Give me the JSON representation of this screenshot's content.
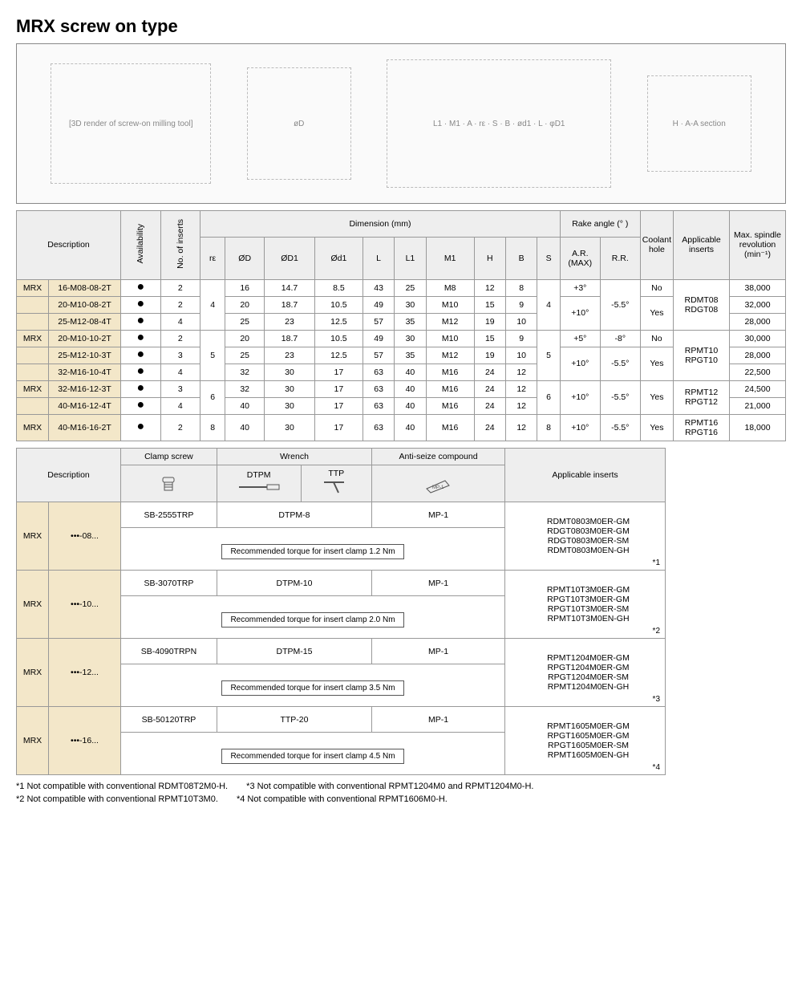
{
  "title": "MRX screw on type",
  "diagram_labels": {
    "photo": "[3D render of screw-on milling tool]",
    "front": "øD",
    "side_labels": "L1 · M1 · A · rε · S · B · ød1 · L · φD1",
    "section": "H · A-A section"
  },
  "main_table": {
    "headers": {
      "description": "Description",
      "availability": "Availability",
      "inserts": "No. of inserts",
      "dimension": "Dimension (mm)",
      "rake": "Rake angle (° )",
      "coolant": "Coolant hole",
      "applicable": "Applicable inserts",
      "maxspindle": "Max. spindle revolution (min⁻¹)",
      "re": "rε",
      "oD": "ØD",
      "oD1": "ØD1",
      "od1": "Ød1",
      "L": "L",
      "L1": "L1",
      "M1": "M1",
      "H": "H",
      "B": "B",
      "S": "S",
      "ar": "A.R. (MAX)",
      "rr": "R.R."
    },
    "groups": [
      {
        "re": "4",
        "S": "4",
        "rr": "-5.5°",
        "applicable": "RDMT08\nRDGT08",
        "rows": [
          {
            "prefix": "MRX",
            "code": "16-M08-08-2T",
            "avail": "●",
            "ni": "2",
            "oD": "16",
            "oD1": "14.7",
            "od1": "8.5",
            "L": "43",
            "L1": "25",
            "M1": "M8",
            "H": "12",
            "B": "8",
            "ar": "+3°",
            "coolant": "No",
            "rpm": "38,000"
          },
          {
            "prefix": "",
            "code": "20-M10-08-2T",
            "avail": "●",
            "ni": "2",
            "oD": "20",
            "oD1": "18.7",
            "od1": "10.5",
            "L": "49",
            "L1": "30",
            "M1": "M10",
            "H": "15",
            "B": "9",
            "ar": "+10°",
            "ar_span": 2,
            "coolant": "Yes",
            "coolant_span": 2,
            "rpm": "32,000"
          },
          {
            "prefix": "",
            "code": "25-M12-08-4T",
            "avail": "●",
            "ni": "4",
            "oD": "25",
            "oD1": "23",
            "od1": "12.5",
            "L": "57",
            "L1": "35",
            "M1": "M12",
            "H": "19",
            "B": "10",
            "rpm": "28,000"
          }
        ]
      },
      {
        "re": "5",
        "S": "5",
        "applicable": "RPMT10\nRPGT10",
        "rows": [
          {
            "prefix": "MRX",
            "code": "20-M10-10-2T",
            "avail": "●",
            "ni": "2",
            "oD": "20",
            "oD1": "18.7",
            "od1": "10.5",
            "L": "49",
            "L1": "30",
            "M1": "M10",
            "H": "15",
            "B": "9",
            "ar": "+5°",
            "rr": "-8°",
            "coolant": "No",
            "rpm": "30,000"
          },
          {
            "prefix": "",
            "code": "25-M12-10-3T",
            "avail": "●",
            "ni": "3",
            "oD": "25",
            "oD1": "23",
            "od1": "12.5",
            "L": "57",
            "L1": "35",
            "M1": "M12",
            "H": "19",
            "B": "10",
            "ar": "+10°",
            "ar_span": 2,
            "rr": "-5.5°",
            "rr_span": 2,
            "coolant": "Yes",
            "coolant_span": 2,
            "rpm": "28,000"
          },
          {
            "prefix": "",
            "code": "32-M16-10-4T",
            "avail": "●",
            "ni": "4",
            "oD": "32",
            "oD1": "30",
            "od1": "17",
            "L": "63",
            "L1": "40",
            "M1": "M16",
            "H": "24",
            "B": "12",
            "rpm": "22,500"
          }
        ]
      },
      {
        "re": "6",
        "S": "6",
        "ar": "+10°",
        "rr": "-5.5°",
        "coolant": "Yes",
        "applicable": "RPMT12\nRPGT12",
        "rows": [
          {
            "prefix": "MRX",
            "code": "32-M16-12-3T",
            "avail": "●",
            "ni": "3",
            "oD": "32",
            "oD1": "30",
            "od1": "17",
            "L": "63",
            "L1": "40",
            "M1": "M16",
            "H": "24",
            "B": "12",
            "rpm": "24,500"
          },
          {
            "prefix": "",
            "code": "40-M16-12-4T",
            "avail": "●",
            "ni": "4",
            "oD": "40",
            "oD1": "30",
            "od1": "17",
            "L": "63",
            "L1": "40",
            "M1": "M16",
            "H": "24",
            "B": "12",
            "rpm": "21,000"
          }
        ]
      },
      {
        "re": "8",
        "S": "8",
        "ar": "+10°",
        "rr": "-5.5°",
        "coolant": "Yes",
        "applicable": "RPMT16\nRPGT16",
        "rows": [
          {
            "prefix": "MRX",
            "code": "40-M16-16-2T",
            "avail": "●",
            "ni": "2",
            "oD": "40",
            "oD1": "30",
            "od1": "17",
            "L": "63",
            "L1": "40",
            "M1": "M16",
            "H": "24",
            "B": "12",
            "rpm": "18,000"
          }
        ]
      }
    ]
  },
  "accessory_table": {
    "headers": {
      "description": "Description",
      "clamp": "Clamp screw",
      "wrench": "Wrench",
      "dtpm": "DTPM",
      "ttp": "TTP",
      "antiseize": "Anti-seize compound",
      "applicable": "Applicable inserts"
    },
    "rows": [
      {
        "prefix": "MRX",
        "code": "•••-08...",
        "clamp": "SB-2555TRP",
        "wrench": "DTPM-8",
        "compound": "MP-1",
        "torque": "Recommended torque for insert clamp 1.2 Nm",
        "inserts": [
          "RDMT0803M0ER-GM",
          "RDGT0803M0ER-GM",
          "RDGT0803M0ER-SM",
          "RDMT0803M0EN-GH"
        ],
        "note": "*1"
      },
      {
        "prefix": "MRX",
        "code": "•••-10...",
        "clamp": "SB-3070TRP",
        "wrench": "DTPM-10",
        "compound": "MP-1",
        "torque": "Recommended torque for insert clamp 2.0 Nm",
        "inserts": [
          "RPMT10T3M0ER-GM",
          "RPGT10T3M0ER-GM",
          "RPGT10T3M0ER-SM",
          "RPMT10T3M0EN-GH"
        ],
        "note": "*2"
      },
      {
        "prefix": "MRX",
        "code": "•••-12...",
        "clamp": "SB-4090TRPN",
        "wrench": "DTPM-15",
        "compound": "MP-1",
        "torque": "Recommended torque for insert clamp 3.5 Nm",
        "inserts": [
          "RPMT1204M0ER-GM",
          "RPGT1204M0ER-GM",
          "RPGT1204M0ER-SM",
          "RPMT1204M0EN-GH"
        ],
        "note": "*3"
      },
      {
        "prefix": "MRX",
        "code": "•••-16...",
        "clamp": "SB-50120TRP",
        "wrench": "TTP-20",
        "compound": "MP-1",
        "torque": "Recommended torque for insert clamp 4.5 Nm",
        "inserts": [
          "RPMT1605M0ER-GM",
          "RPGT1605M0ER-GM",
          "RPGT1605M0ER-SM",
          "RPMT1605M0EN-GH"
        ],
        "note": "*4"
      }
    ]
  },
  "footnotes": {
    "n1": "*1 Not compatible with conventional RDMT08T2M0-H.",
    "n2": "*2 Not compatible with conventional RPMT10T3M0.",
    "n3": "*3 Not compatible with conventional RPMT1204M0 and RPMT1204M0-H.",
    "n4": "*4 Not compatible with conventional RPMT1606M0-H."
  },
  "colors": {
    "header_bg": "#eeeeee",
    "desc_bg": "#f3e7c9",
    "border": "#999999"
  }
}
